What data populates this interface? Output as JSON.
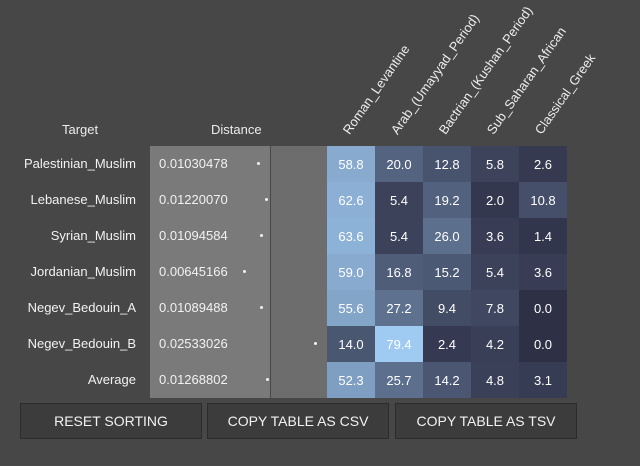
{
  "headers": {
    "target": "Target",
    "distance": "Distance",
    "columns": [
      "Roman_Levantine",
      "Arab_(Umayyad_Period)",
      "Bactrian_(Kushan_Period)",
      "Sub_Saharan_African",
      "Classical_Greek"
    ]
  },
  "rows": [
    {
      "target": "Palestinian_Muslim",
      "distance": "0.01030478",
      "values": [
        "58.8",
        "20.0",
        "12.8",
        "5.8",
        "2.6"
      ]
    },
    {
      "target": "Lebanese_Muslim",
      "distance": "0.01220070",
      "values": [
        "62.6",
        "5.4",
        "19.2",
        "2.0",
        "10.8"
      ]
    },
    {
      "target": "Syrian_Muslim",
      "distance": "0.01094584",
      "values": [
        "63.6",
        "5.4",
        "26.0",
        "3.6",
        "1.4"
      ]
    },
    {
      "target": "Jordanian_Muslim",
      "distance": "0.00645166",
      "values": [
        "59.0",
        "16.8",
        "15.2",
        "5.4",
        "3.6"
      ]
    },
    {
      "target": "Negev_Bedouin_A",
      "distance": "0.01089488",
      "values": [
        "55.6",
        "27.2",
        "9.4",
        "7.8",
        "0.0"
      ]
    },
    {
      "target": "Negev_Bedouin_B",
      "distance": "0.02533026",
      "values": [
        "14.0",
        "79.4",
        "2.4",
        "4.2",
        "0.0"
      ]
    },
    {
      "target": "Average",
      "distance": "0.01268802",
      "values": [
        "52.3",
        "25.7",
        "14.2",
        "4.8",
        "3.1"
      ]
    }
  ],
  "buttons": {
    "reset": "RESET SORTING",
    "copy_csv": "COPY TABLE AS CSV",
    "copy_tsv": "COPY TABLE AS TSV"
  },
  "colors": {
    "background": "#474747",
    "distance_panel": "#7a7a7a",
    "heat_low": "#2f3046",
    "heat_high": "#9dc8f0"
  }
}
